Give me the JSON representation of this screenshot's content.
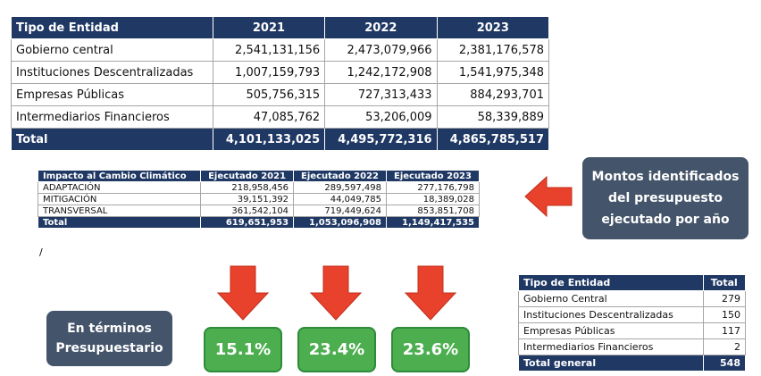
{
  "tables": [
    {
      "headers": [
        "Tipo de Entidad",
        "2021",
        "2022",
        "2023"
      ],
      "rows": [
        [
          "Gobierno central",
          "2,541,131,156",
          "2,473,079,966",
          "2,381,176,578"
        ],
        [
          "Instituciones Descentralizadas",
          "1,007,159,793",
          "1,242,172,908",
          "1,541,975,348"
        ],
        [
          "Empresas Públicas",
          "505,756,315",
          "727,313,433",
          "884,293,701"
        ],
        [
          "Intermediarios Financieros",
          "47,085,762",
          "53,206,009",
          "58,339,889"
        ]
      ],
      "total": [
        "Total",
        "4,101,133,025",
        "4,495,772,316",
        "4,865,785,517"
      ]
    },
    {
      "headers": [
        "Impacto al Cambio Climático",
        "Ejecutado 2021",
        "Ejecutado 2022",
        "Ejecutado 2023"
      ],
      "rows": [
        [
          "ADAPTACIÓN",
          "218,958,456",
          "289,597,498",
          "277,176,798"
        ],
        [
          "MITIGACIÓN",
          "39,151,392",
          "44,049,785",
          "18,389,028"
        ],
        [
          "TRANSVERSAL",
          "361,542,104",
          "719,449,624",
          "853,851,708"
        ]
      ],
      "total": [
        "Total",
        "619,651,953",
        "1,053,096,908",
        "1,149,417,535"
      ]
    },
    {
      "headers": [
        "Tipo de Entidad",
        "Total"
      ],
      "rows": [
        [
          "Gobierno Central",
          "279"
        ],
        [
          "Instituciones Descentralizadas",
          "150"
        ],
        [
          "Empresas Públicas",
          "117"
        ],
        [
          "Intermediarios Financieros",
          "2"
        ]
      ],
      "total": [
        "Total general",
        "548"
      ]
    }
  ],
  "stray_mark": "/",
  "callout": [
    "Montos identificados",
    "del presupuesto",
    "ejecutado por año"
  ],
  "indicator_label": [
    "En términos",
    "Presupuestario"
  ],
  "indicators": [
    "15.1%",
    "23.4%",
    "23.6%"
  ]
}
